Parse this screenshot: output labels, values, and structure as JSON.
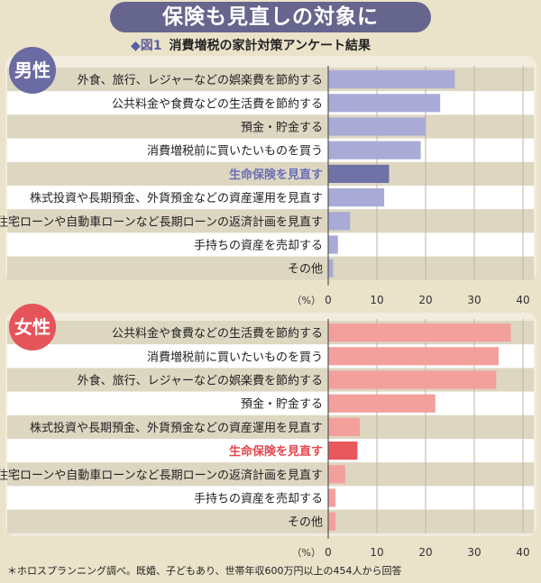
{
  "headline": "保険も見直しの対象に",
  "subtitle": {
    "mark": "◆",
    "fig": "図1",
    "title": "消費増税の家計対策アンケート結果"
  },
  "footnote": "＊ホロスプランニング調べ。既婚、子どもあり、世帯年収600万円以上の454人から回答",
  "colors": {
    "male_bar": "#a9abd6",
    "male_highlight_bar": "#6f72a7",
    "male_highlight_text": "#6a6fb8",
    "female_bar": "#f3a09c",
    "female_highlight_bar": "#e8585c",
    "female_highlight_text": "#e5464d",
    "row_light": "#ffffff",
    "row_dark": "#ddd6c1"
  },
  "chart_data": [
    {
      "type": "bar",
      "orientation": "horizontal",
      "group_label": "男性",
      "categories": [
        "外食、旅行、レジャーなどの娯楽費を節約する",
        "公共料金や食費などの生活費を節約する",
        "預金・貯金する",
        "消費増税前に買いたいものを買う",
        "生命保険を見直す",
        "株式投資や長期預金、外貨預金などの資産運用を見直す",
        "住宅ローンや自動車ローンなど長期ローンの返済計画を見直す",
        "手持ちの資産を売却する",
        "その他"
      ],
      "values": [
        26,
        23,
        20,
        19,
        12.5,
        11.5,
        4.5,
        2,
        1
      ],
      "highlight": "生命保険を見直す",
      "xlim": [
        0,
        40
      ],
      "xticks": [
        "0",
        "10",
        "20",
        "30",
        "40"
      ],
      "xunit": "（%）",
      "grid": true
    },
    {
      "type": "bar",
      "orientation": "horizontal",
      "group_label": "女性",
      "categories": [
        "公共料金や食費などの生活費を節約する",
        "消費増税前に買いたいものを買う",
        "外食、旅行、レジャーなどの娯楽費を節約する",
        "預金・貯金する",
        "株式投資や長期預金、外貨預金などの資産運用を見直す",
        "生命保険を見直す",
        "住宅ローンや自動車ローンなど長期ローンの返済計画を見直す",
        "手持ちの資産を売却する",
        "その他"
      ],
      "values": [
        37.5,
        35,
        34.5,
        22,
        6.5,
        6,
        3.5,
        1.5,
        1.5
      ],
      "highlight": "生命保険を見直す",
      "xlim": [
        0,
        40
      ],
      "xticks": [
        "0",
        "10",
        "20",
        "30",
        "40"
      ],
      "xunit": "（%）",
      "grid": true
    }
  ]
}
